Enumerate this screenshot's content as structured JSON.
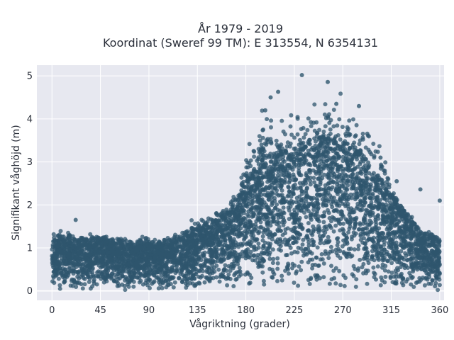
{
  "chart_data": {
    "type": "scatter",
    "title_lines": [
      "År 1979 - 2019",
      "Koordinat (Sweref 99 TM): E 313554, N 6354131"
    ],
    "xlabel": "Vågriktning (grader)",
    "ylabel": "Signifikant våghöjd (m)",
    "xlim": [
      -14,
      364
    ],
    "ylim": [
      -0.22,
      5.25
    ],
    "xticks": [
      0,
      45,
      90,
      135,
      180,
      225,
      270,
      315,
      360
    ],
    "xtick_labels": [
      "0",
      "45",
      "90",
      "135",
      "180",
      "225",
      "270",
      "315",
      "360"
    ],
    "yticks": [
      0,
      1,
      2,
      3,
      4,
      5
    ],
    "ytick_labels": [
      "0",
      "1",
      "2",
      "3",
      "4",
      "5"
    ],
    "grid": true,
    "colors": {
      "marker": "#2f566e",
      "plot_background": "#e7e8f0",
      "grid": "#ffffff"
    },
    "x_range_data": [
      0,
      360
    ],
    "envelope": {
      "direction": [
        0,
        10,
        30,
        45,
        60,
        90,
        120,
        135,
        150,
        165,
        180,
        195,
        210,
        225,
        240,
        255,
        270,
        285,
        300,
        315,
        330,
        345,
        360
      ],
      "upper_height": [
        1.2,
        1.25,
        1.2,
        1.2,
        1.15,
        1.1,
        1.25,
        1.45,
        1.65,
        1.9,
        2.6,
        3.2,
        3.3,
        3.3,
        3.45,
        3.6,
        3.5,
        3.3,
        2.8,
        2.3,
        1.8,
        1.35,
        1.15
      ]
    },
    "outliers": [
      {
        "x": 22,
        "y": 1.65
      },
      {
        "x": 232,
        "y": 5.02
      },
      {
        "x": 256,
        "y": 4.86
      },
      {
        "x": 210,
        "y": 4.63
      },
      {
        "x": 203,
        "y": 4.5
      },
      {
        "x": 198,
        "y": 4.2
      },
      {
        "x": 264,
        "y": 4.35
      },
      {
        "x": 285,
        "y": 4.3
      },
      {
        "x": 360,
        "y": 2.1
      },
      {
        "x": 342,
        "y": 2.36
      },
      {
        "x": 320,
        "y": 2.55
      },
      {
        "x": 305,
        "y": 3.1
      }
    ]
  }
}
